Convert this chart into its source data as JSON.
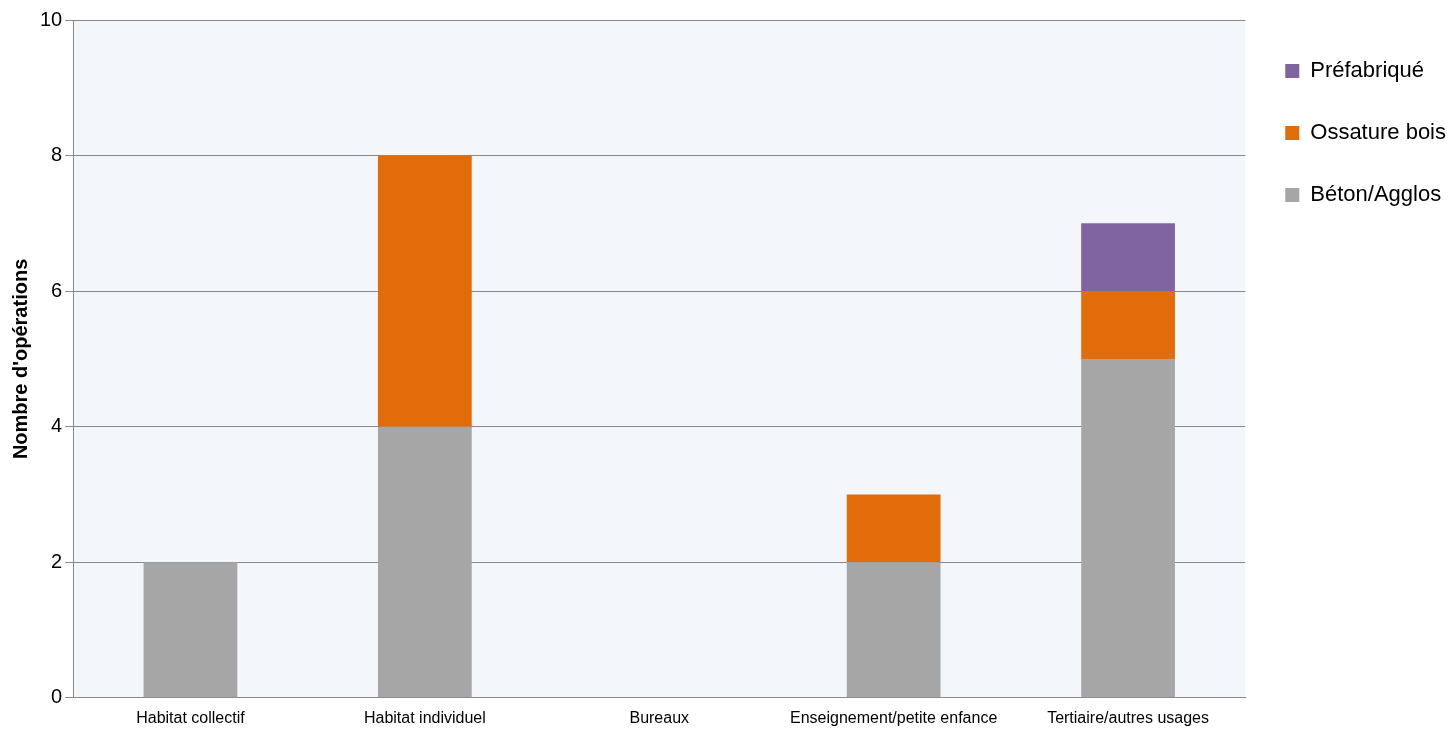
{
  "chart_data": {
    "type": "bar",
    "ylabel": "Nombre d'opérations",
    "categories": [
      "Habitat collectif",
      "Habitat individuel",
      "Bureaux",
      "Enseignement/petite enfance",
      "Tertiaire/autres usages"
    ],
    "series": [
      {
        "name": "Béton/Agglos",
        "color": "#a6a6a6",
        "values": [
          2,
          4,
          0,
          2,
          5
        ]
      },
      {
        "name": "Ossature bois",
        "color": "#e36c0a",
        "values": [
          0,
          4,
          0,
          1,
          1
        ]
      },
      {
        "name": "Préfabriqué",
        "color": "#8064a2",
        "values": [
          0,
          0,
          0,
          0,
          1
        ]
      }
    ],
    "stacked": true,
    "ylim": [
      0,
      10
    ],
    "yticks": [
      0,
      2,
      4,
      6,
      8,
      10
    ],
    "grid": "y",
    "legend": "right"
  }
}
